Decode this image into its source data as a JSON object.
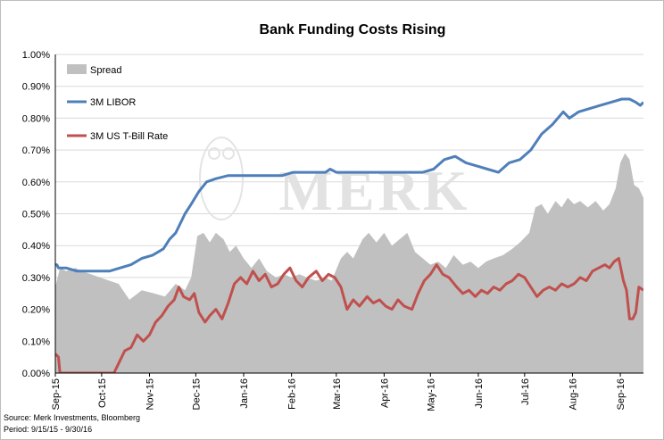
{
  "chart_data": {
    "type": "line",
    "title": "Bank Funding Costs Rising",
    "watermark": "MERK",
    "source": "Source: Merk Investments, Bloomberg",
    "period": "Period: 9/15/15 - 9/30/16",
    "ylim": [
      0,
      1.0
    ],
    "y_ticks": [
      "0.00%",
      "0.10%",
      "0.20%",
      "0.30%",
      "0.40%",
      "0.50%",
      "0.60%",
      "0.70%",
      "0.80%",
      "0.90%",
      "1.00%"
    ],
    "x_range": [
      "2015-09-15",
      "2016-09-30"
    ],
    "x_ticks": [
      {
        "label": "Sep-15",
        "date": "2015-09-15"
      },
      {
        "label": "Oct-15",
        "date": "2015-10-15"
      },
      {
        "label": "Nov-15",
        "date": "2015-11-15"
      },
      {
        "label": "Dec-15",
        "date": "2015-12-15"
      },
      {
        "label": "Jan-16",
        "date": "2016-01-15"
      },
      {
        "label": "Feb-16",
        "date": "2016-02-15"
      },
      {
        "label": "Mar-16",
        "date": "2016-03-15"
      },
      {
        "label": "Apr-16",
        "date": "2016-04-15"
      },
      {
        "label": "May-16",
        "date": "2016-05-15"
      },
      {
        "label": "Jun-16",
        "date": "2016-06-15"
      },
      {
        "label": "Jul-16",
        "date": "2016-07-15"
      },
      {
        "label": "Aug-16",
        "date": "2016-08-15"
      },
      {
        "label": "Sep-16",
        "date": "2016-09-15"
      }
    ],
    "legend_placement": "top-left",
    "grid": true,
    "series": [
      {
        "name": "Spread",
        "kind": "area",
        "color": "#c0c0c0",
        "points": [
          [
            "2015-09-15",
            0.27
          ],
          [
            "2015-09-18",
            0.33
          ],
          [
            "2015-09-22",
            0.32
          ],
          [
            "2015-09-28",
            0.33
          ],
          [
            "2015-10-02",
            0.32
          ],
          [
            "2015-10-08",
            0.31
          ],
          [
            "2015-10-14",
            0.3
          ],
          [
            "2015-10-20",
            0.29
          ],
          [
            "2015-10-26",
            0.28
          ],
          [
            "2015-11-02",
            0.23
          ],
          [
            "2015-11-10",
            0.26
          ],
          [
            "2015-11-18",
            0.25
          ],
          [
            "2015-11-25",
            0.24
          ],
          [
            "2015-12-02",
            0.28
          ],
          [
            "2015-12-08",
            0.26
          ],
          [
            "2015-12-12",
            0.3
          ],
          [
            "2015-12-16",
            0.43
          ],
          [
            "2015-12-20",
            0.44
          ],
          [
            "2015-12-24",
            0.41
          ],
          [
            "2015-12-28",
            0.44
          ],
          [
            "2016-01-02",
            0.42
          ],
          [
            "2016-01-06",
            0.38
          ],
          [
            "2016-01-10",
            0.4
          ],
          [
            "2016-01-15",
            0.36
          ],
          [
            "2016-01-20",
            0.33
          ],
          [
            "2016-01-25",
            0.36
          ],
          [
            "2016-01-30",
            0.32
          ],
          [
            "2016-02-05",
            0.3
          ],
          [
            "2016-02-10",
            0.31
          ],
          [
            "2016-02-15",
            0.3
          ],
          [
            "2016-02-20",
            0.31
          ],
          [
            "2016-02-25",
            0.3
          ],
          [
            "2016-03-02",
            0.29
          ],
          [
            "2016-03-08",
            0.3
          ],
          [
            "2016-03-12",
            0.29
          ],
          [
            "2016-03-18",
            0.36
          ],
          [
            "2016-03-22",
            0.38
          ],
          [
            "2016-03-26",
            0.36
          ],
          [
            "2016-04-01",
            0.42
          ],
          [
            "2016-04-05",
            0.44
          ],
          [
            "2016-04-10",
            0.41
          ],
          [
            "2016-04-15",
            0.44
          ],
          [
            "2016-04-20",
            0.4
          ],
          [
            "2016-04-25",
            0.42
          ],
          [
            "2016-04-30",
            0.44
          ],
          [
            "2016-05-05",
            0.38
          ],
          [
            "2016-05-10",
            0.36
          ],
          [
            "2016-05-15",
            0.34
          ],
          [
            "2016-05-20",
            0.35
          ],
          [
            "2016-05-25",
            0.33
          ],
          [
            "2016-05-30",
            0.37
          ],
          [
            "2016-06-05",
            0.34
          ],
          [
            "2016-06-10",
            0.35
          ],
          [
            "2016-06-15",
            0.33
          ],
          [
            "2016-06-20",
            0.35
          ],
          [
            "2016-06-25",
            0.36
          ],
          [
            "2016-07-01",
            0.37
          ],
          [
            "2016-07-07",
            0.39
          ],
          [
            "2016-07-12",
            0.41
          ],
          [
            "2016-07-18",
            0.44
          ],
          [
            "2016-07-22",
            0.52
          ],
          [
            "2016-07-26",
            0.53
          ],
          [
            "2016-07-30",
            0.5
          ],
          [
            "2016-08-04",
            0.54
          ],
          [
            "2016-08-08",
            0.52
          ],
          [
            "2016-08-12",
            0.55
          ],
          [
            "2016-08-16",
            0.53
          ],
          [
            "2016-08-20",
            0.54
          ],
          [
            "2016-08-25",
            0.52
          ],
          [
            "2016-08-30",
            0.54
          ],
          [
            "2016-09-04",
            0.51
          ],
          [
            "2016-09-08",
            0.53
          ],
          [
            "2016-09-12",
            0.58
          ],
          [
            "2016-09-15",
            0.66
          ],
          [
            "2016-09-18",
            0.69
          ],
          [
            "2016-09-21",
            0.67
          ],
          [
            "2016-09-24",
            0.59
          ],
          [
            "2016-09-27",
            0.58
          ],
          [
            "2016-09-30",
            0.55
          ]
        ]
      },
      {
        "name": "3M LIBOR",
        "kind": "line",
        "color": "#4f7fb9",
        "points": [
          [
            "2015-09-15",
            0.34
          ],
          [
            "2015-09-16",
            0.34
          ],
          [
            "2015-09-17",
            0.33
          ],
          [
            "2015-09-22",
            0.33
          ],
          [
            "2015-09-29",
            0.32
          ],
          [
            "2015-10-06",
            0.32
          ],
          [
            "2015-10-13",
            0.32
          ],
          [
            "2015-10-20",
            0.32
          ],
          [
            "2015-10-27",
            0.33
          ],
          [
            "2015-11-03",
            0.34
          ],
          [
            "2015-11-10",
            0.36
          ],
          [
            "2015-11-17",
            0.37
          ],
          [
            "2015-11-24",
            0.39
          ],
          [
            "2015-11-28",
            0.42
          ],
          [
            "2015-12-02",
            0.44
          ],
          [
            "2015-12-08",
            0.5
          ],
          [
            "2015-12-12",
            0.53
          ],
          [
            "2015-12-17",
            0.57
          ],
          [
            "2015-12-22",
            0.6
          ],
          [
            "2015-12-28",
            0.61
          ],
          [
            "2016-01-05",
            0.62
          ],
          [
            "2016-01-12",
            0.62
          ],
          [
            "2016-01-19",
            0.62
          ],
          [
            "2016-01-26",
            0.62
          ],
          [
            "2016-02-02",
            0.62
          ],
          [
            "2016-02-09",
            0.62
          ],
          [
            "2016-02-16",
            0.63
          ],
          [
            "2016-02-23",
            0.63
          ],
          [
            "2016-03-01",
            0.63
          ],
          [
            "2016-03-08",
            0.63
          ],
          [
            "2016-03-11",
            0.64
          ],
          [
            "2016-03-15",
            0.63
          ],
          [
            "2016-03-22",
            0.63
          ],
          [
            "2016-03-29",
            0.63
          ],
          [
            "2016-04-05",
            0.63
          ],
          [
            "2016-04-12",
            0.63
          ],
          [
            "2016-04-19",
            0.63
          ],
          [
            "2016-04-26",
            0.63
          ],
          [
            "2016-05-03",
            0.63
          ],
          [
            "2016-05-10",
            0.63
          ],
          [
            "2016-05-17",
            0.64
          ],
          [
            "2016-05-24",
            0.67
          ],
          [
            "2016-05-31",
            0.68
          ],
          [
            "2016-06-07",
            0.66
          ],
          [
            "2016-06-14",
            0.65
          ],
          [
            "2016-06-21",
            0.64
          ],
          [
            "2016-06-28",
            0.63
          ],
          [
            "2016-07-05",
            0.66
          ],
          [
            "2016-07-12",
            0.67
          ],
          [
            "2016-07-19",
            0.7
          ],
          [
            "2016-07-26",
            0.75
          ],
          [
            "2016-08-02",
            0.78
          ],
          [
            "2016-08-09",
            0.82
          ],
          [
            "2016-08-13",
            0.8
          ],
          [
            "2016-08-19",
            0.82
          ],
          [
            "2016-08-26",
            0.83
          ],
          [
            "2016-09-02",
            0.84
          ],
          [
            "2016-09-09",
            0.85
          ],
          [
            "2016-09-16",
            0.86
          ],
          [
            "2016-09-21",
            0.86
          ],
          [
            "2016-09-25",
            0.85
          ],
          [
            "2016-09-28",
            0.84
          ],
          [
            "2016-09-30",
            0.85
          ]
        ]
      },
      {
        "name": "3M US T-Bill Rate",
        "kind": "line",
        "color": "#c0504d",
        "points": [
          [
            "2015-09-15",
            0.06
          ],
          [
            "2015-09-17",
            0.05
          ],
          [
            "2015-09-18",
            0.0
          ],
          [
            "2015-09-25",
            0.0
          ],
          [
            "2015-10-02",
            0.0
          ],
          [
            "2015-10-09",
            0.0
          ],
          [
            "2015-10-16",
            0.0
          ],
          [
            "2015-10-23",
            0.0
          ],
          [
            "2015-10-27",
            0.04
          ],
          [
            "2015-10-30",
            0.07
          ],
          [
            "2015-11-03",
            0.08
          ],
          [
            "2015-11-07",
            0.12
          ],
          [
            "2015-11-11",
            0.1
          ],
          [
            "2015-11-15",
            0.12
          ],
          [
            "2015-11-19",
            0.16
          ],
          [
            "2015-11-23",
            0.18
          ],
          [
            "2015-11-27",
            0.21
          ],
          [
            "2015-12-01",
            0.23
          ],
          [
            "2015-12-04",
            0.27
          ],
          [
            "2015-12-07",
            0.24
          ],
          [
            "2015-12-11",
            0.23
          ],
          [
            "2015-12-14",
            0.25
          ],
          [
            "2015-12-17",
            0.19
          ],
          [
            "2015-12-21",
            0.16
          ],
          [
            "2015-12-24",
            0.18
          ],
          [
            "2015-12-28",
            0.2
          ],
          [
            "2016-01-01",
            0.17
          ],
          [
            "2016-01-05",
            0.22
          ],
          [
            "2016-01-09",
            0.28
          ],
          [
            "2016-01-13",
            0.3
          ],
          [
            "2016-01-17",
            0.28
          ],
          [
            "2016-01-21",
            0.32
          ],
          [
            "2016-01-25",
            0.29
          ],
          [
            "2016-01-29",
            0.31
          ],
          [
            "2016-02-02",
            0.27
          ],
          [
            "2016-02-06",
            0.28
          ],
          [
            "2016-02-10",
            0.31
          ],
          [
            "2016-02-14",
            0.33
          ],
          [
            "2016-02-18",
            0.29
          ],
          [
            "2016-02-22",
            0.27
          ],
          [
            "2016-02-26",
            0.3
          ],
          [
            "2016-03-02",
            0.32
          ],
          [
            "2016-03-06",
            0.29
          ],
          [
            "2016-03-10",
            0.31
          ],
          [
            "2016-03-14",
            0.3
          ],
          [
            "2016-03-18",
            0.27
          ],
          [
            "2016-03-22",
            0.2
          ],
          [
            "2016-03-26",
            0.23
          ],
          [
            "2016-03-30",
            0.21
          ],
          [
            "2016-04-04",
            0.24
          ],
          [
            "2016-04-08",
            0.22
          ],
          [
            "2016-04-12",
            0.23
          ],
          [
            "2016-04-16",
            0.21
          ],
          [
            "2016-04-20",
            0.2
          ],
          [
            "2016-04-24",
            0.23
          ],
          [
            "2016-04-28",
            0.21
          ],
          [
            "2016-05-03",
            0.2
          ],
          [
            "2016-05-07",
            0.25
          ],
          [
            "2016-05-11",
            0.29
          ],
          [
            "2016-05-15",
            0.31
          ],
          [
            "2016-05-19",
            0.34
          ],
          [
            "2016-05-23",
            0.31
          ],
          [
            "2016-05-27",
            0.3
          ],
          [
            "2016-06-01",
            0.27
          ],
          [
            "2016-06-05",
            0.25
          ],
          [
            "2016-06-09",
            0.26
          ],
          [
            "2016-06-13",
            0.24
          ],
          [
            "2016-06-17",
            0.26
          ],
          [
            "2016-06-21",
            0.25
          ],
          [
            "2016-06-25",
            0.27
          ],
          [
            "2016-06-29",
            0.26
          ],
          [
            "2016-07-03",
            0.28
          ],
          [
            "2016-07-07",
            0.29
          ],
          [
            "2016-07-11",
            0.31
          ],
          [
            "2016-07-15",
            0.3
          ],
          [
            "2016-07-19",
            0.27
          ],
          [
            "2016-07-23",
            0.24
          ],
          [
            "2016-07-27",
            0.26
          ],
          [
            "2016-07-31",
            0.27
          ],
          [
            "2016-08-04",
            0.26
          ],
          [
            "2016-08-08",
            0.28
          ],
          [
            "2016-08-12",
            0.27
          ],
          [
            "2016-08-16",
            0.28
          ],
          [
            "2016-08-20",
            0.3
          ],
          [
            "2016-08-24",
            0.29
          ],
          [
            "2016-08-28",
            0.32
          ],
          [
            "2016-09-01",
            0.33
          ],
          [
            "2016-09-05",
            0.34
          ],
          [
            "2016-09-08",
            0.33
          ],
          [
            "2016-09-11",
            0.35
          ],
          [
            "2016-09-14",
            0.36
          ],
          [
            "2016-09-17",
            0.29
          ],
          [
            "2016-09-19",
            0.26
          ],
          [
            "2016-09-21",
            0.17
          ],
          [
            "2016-09-23",
            0.17
          ],
          [
            "2016-09-25",
            0.19
          ],
          [
            "2016-09-27",
            0.27
          ],
          [
            "2016-09-30",
            0.26
          ]
        ]
      }
    ]
  }
}
